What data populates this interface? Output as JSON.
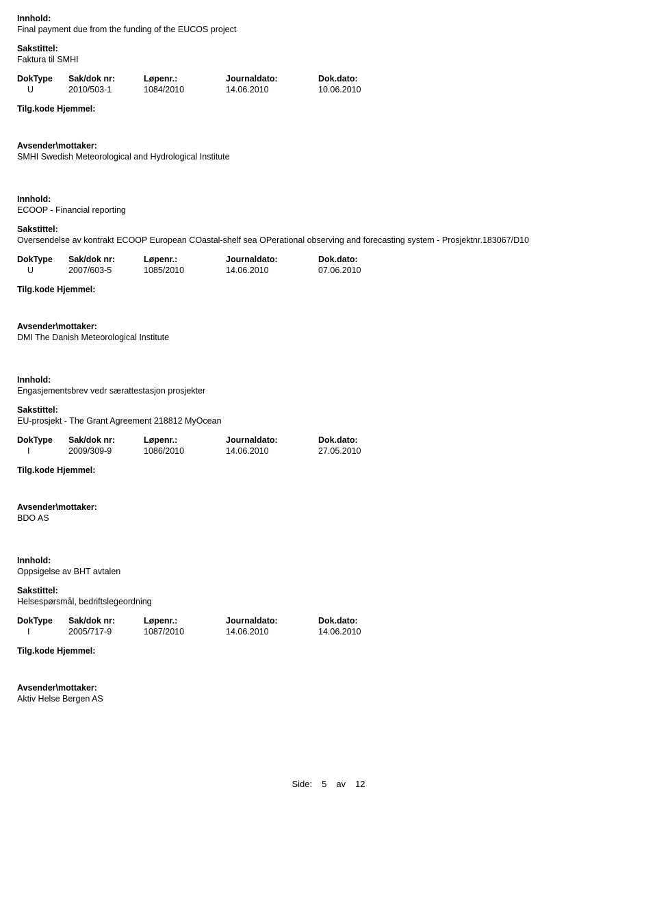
{
  "labels": {
    "innhold": "Innhold:",
    "sakstittel": "Sakstittel:",
    "doktype": "DokType",
    "saknr": "Sak/dok nr:",
    "lopenr": "Løpenr.:",
    "journaldato": "Journaldato:",
    "dokdato": "Dok.dato:",
    "tilgkode": "Tilg.kode",
    "hjemmel": "Hjemmel:",
    "avsender": "Avsender\\mottaker:"
  },
  "records": [
    {
      "innhold": "Final payment due from the funding of the EUCOS project",
      "sakstittel": "Faktura til SMHI",
      "doktype": "U",
      "saknr": "2010/503-1",
      "lopenr": "1084/2010",
      "journaldato": "14.06.2010",
      "dokdato": "10.06.2010",
      "avsender": "SMHI Swedish Meteorological and  Hydrological Institute"
    },
    {
      "innhold": "ECOOP - Financial reporting",
      "sakstittel": "Oversendelse av kontrakt ECOOP European COastal-shelf sea OPerational observing and forecasting system - Prosjektnr.183067/D10",
      "doktype": "U",
      "saknr": "2007/603-5",
      "lopenr": "1085/2010",
      "journaldato": "14.06.2010",
      "dokdato": "07.06.2010",
      "avsender": "DMI The Danish Meteorological Institute"
    },
    {
      "innhold": "Engasjementsbrev vedr særattestasjon prosjekter",
      "sakstittel": "EU-prosjekt - The Grant Agreement 218812 MyOcean",
      "doktype": "I",
      "saknr": "2009/309-9",
      "lopenr": "1086/2010",
      "journaldato": "14.06.2010",
      "dokdato": "27.05.2010",
      "avsender": "BDO AS"
    },
    {
      "innhold": "Oppsigelse av BHT avtalen",
      "sakstittel": "Helsespørsmål, bedriftslegeordning",
      "doktype": "I",
      "saknr": "2005/717-9",
      "lopenr": "1087/2010",
      "journaldato": "14.06.2010",
      "dokdato": "14.06.2010",
      "avsender": "Aktiv Helse Bergen AS"
    }
  ],
  "footer": {
    "side": "Side:",
    "page": "5",
    "av": "av",
    "total": "12"
  }
}
